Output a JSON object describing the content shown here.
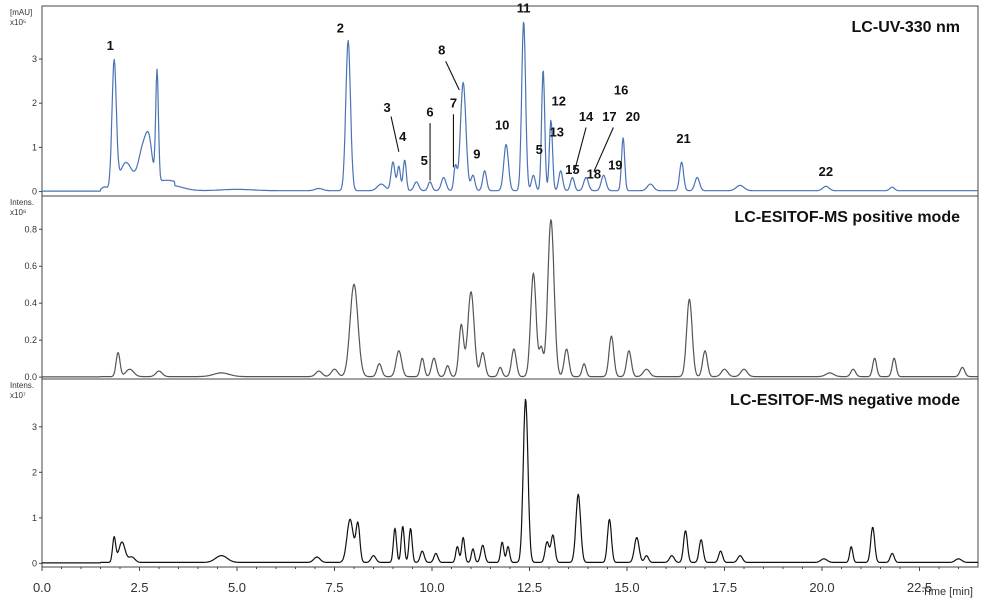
{
  "chart_data": {
    "type": "line",
    "xlabel": "Time [min]",
    "xlim": [
      0,
      24
    ],
    "xticks": [
      "0.0",
      "2.5",
      "5.0",
      "7.5",
      "10.0",
      "12.5",
      "15.0",
      "17.5",
      "20.0",
      "22.5"
    ],
    "xtick_values": [
      0,
      2.5,
      5,
      7.5,
      10,
      12.5,
      15,
      17.5,
      20,
      22.5
    ],
    "panels": [
      {
        "id": "uv",
        "title": "LC-UV-330 nm",
        "ylabel": "[mAU]",
        "yscale_label": "x10⁵",
        "ylim": [
          -0.1,
          4.2
        ],
        "yticks": [
          0,
          1,
          2,
          3
        ],
        "color": "#4a73b5",
        "baseline": 0.02,
        "peaks": [
          [
            1.6,
            0.06,
            0.06
          ],
          [
            1.85,
            2.85,
            0.055
          ],
          [
            2.15,
            0.55,
            0.15
          ],
          [
            2.6,
            0.85,
            0.12
          ],
          [
            2.75,
            0.7,
            0.08
          ],
          [
            2.95,
            2.5,
            0.035
          ],
          [
            3.3,
            0.12,
            0.3
          ],
          [
            5,
            0.03,
            0.4
          ],
          [
            7.1,
            0.05,
            0.1
          ],
          [
            7.85,
            3.4,
            0.06
          ],
          [
            8.7,
            0.15,
            0.1
          ],
          [
            9,
            0.65,
            0.05
          ],
          [
            9.15,
            0.55,
            0.04
          ],
          [
            9.3,
            0.7,
            0.04
          ],
          [
            9.6,
            0.2,
            0.06
          ],
          [
            9.95,
            0.2,
            0.05
          ],
          [
            10.3,
            0.3,
            0.06
          ],
          [
            10.6,
            0.55,
            0.04
          ],
          [
            10.8,
            2.45,
            0.07
          ],
          [
            11.05,
            0.35,
            0.05
          ],
          [
            11.35,
            0.45,
            0.05
          ],
          [
            11.9,
            1.05,
            0.06
          ],
          [
            12.35,
            3.85,
            0.05
          ],
          [
            12.6,
            0.35,
            0.05
          ],
          [
            12.85,
            2.75,
            0.04
          ],
          [
            13.05,
            1.6,
            0.04
          ],
          [
            13.3,
            0.45,
            0.05
          ],
          [
            13.6,
            0.3,
            0.05
          ],
          [
            13.95,
            0.3,
            0.06
          ],
          [
            14.4,
            0.35,
            0.06
          ],
          [
            14.9,
            1.2,
            0.04
          ],
          [
            15.6,
            0.15,
            0.08
          ],
          [
            16.4,
            0.65,
            0.05
          ],
          [
            16.8,
            0.3,
            0.06
          ],
          [
            17.9,
            0.12,
            0.1
          ],
          [
            20.1,
            0.1,
            0.08
          ],
          [
            21.8,
            0.08,
            0.06
          ]
        ],
        "annotations": [
          {
            "label": "1",
            "x": 1.75,
            "y": 3.2
          },
          {
            "label": "2",
            "x": 7.65,
            "y": 3.6
          },
          {
            "label": "3",
            "x": 8.85,
            "y": 1.8
          },
          {
            "label": "4",
            "x": 9.25,
            "y": 1.15
          },
          {
            "label": "5",
            "x": 9.8,
            "y": 0.6
          },
          {
            "label": "6",
            "x": 9.95,
            "y": 1.7
          },
          {
            "label": "7",
            "x": 10.55,
            "y": 1.9
          },
          {
            "label": "8",
            "x": 10.25,
            "y": 3.1
          },
          {
            "label": "9",
            "x": 11.15,
            "y": 0.75
          },
          {
            "label": "10",
            "x": 11.8,
            "y": 1.4
          },
          {
            "label": "5",
            "x": 12.75,
            "y": 0.85
          },
          {
            "label": "11",
            "x": 12.35,
            "y": 4.05
          },
          {
            "label": "12",
            "x": 13.25,
            "y": 1.95
          },
          {
            "label": "13",
            "x": 13.2,
            "y": 1.25
          },
          {
            "label": "14",
            "x": 13.95,
            "y": 1.6
          },
          {
            "label": "15",
            "x": 13.6,
            "y": 0.4
          },
          {
            "label": "16",
            "x": 14.85,
            "y": 2.2
          },
          {
            "label": "17",
            "x": 14.55,
            "y": 1.6
          },
          {
            "label": "18",
            "x": 14.15,
            "y": 0.3
          },
          {
            "label": "19",
            "x": 14.7,
            "y": 0.5
          },
          {
            "label": "20",
            "x": 15.15,
            "y": 1.6
          },
          {
            "label": "21",
            "x": 16.45,
            "y": 1.1
          },
          {
            "label": "22",
            "x": 20.1,
            "y": 0.35
          }
        ],
        "leaders": [
          {
            "from": [
              8.95,
              1.7
            ],
            "to": [
              9.15,
              0.9
            ]
          },
          {
            "from": [
              9.95,
              1.55
            ],
            "to": [
              9.95,
              0.25
            ]
          },
          {
            "from": [
              10.55,
              1.75
            ],
            "to": [
              10.55,
              0.55
            ]
          },
          {
            "from": [
              10.35,
              2.95
            ],
            "to": [
              10.7,
              2.3
            ]
          },
          {
            "from": [
              13.95,
              1.45
            ],
            "to": [
              13.65,
              0.45
            ]
          },
          {
            "from": [
              14.65,
              1.45
            ],
            "to": [
              14.15,
              0.45
            ]
          }
        ]
      },
      {
        "id": "pos",
        "title": "LC-ESITOF-MS positive mode",
        "ylabel": "Intens.",
        "yscale_label": "x10⁸",
        "ylim": [
          -0.01,
          0.98
        ],
        "yticks": [
          0,
          0.2,
          0.4,
          0.6,
          0.8
        ],
        "ytick_labels": [
          "0.0",
          "0.2",
          "0.4",
          "0.6",
          "0.8"
        ],
        "color": "#555555",
        "baseline": 0.003,
        "peaks": [
          [
            1.95,
            0.13,
            0.05
          ],
          [
            2.25,
            0.04,
            0.1
          ],
          [
            3,
            0.03,
            0.08
          ],
          [
            4.6,
            0.02,
            0.2
          ],
          [
            7.1,
            0.03,
            0.08
          ],
          [
            7.5,
            0.04,
            0.08
          ],
          [
            8,
            0.5,
            0.1
          ],
          [
            8.65,
            0.07,
            0.06
          ],
          [
            9.15,
            0.14,
            0.07
          ],
          [
            9.75,
            0.1,
            0.05
          ],
          [
            10.05,
            0.1,
            0.06
          ],
          [
            10.4,
            0.06,
            0.05
          ],
          [
            10.75,
            0.28,
            0.06
          ],
          [
            11,
            0.46,
            0.08
          ],
          [
            11.3,
            0.13,
            0.06
          ],
          [
            11.75,
            0.05,
            0.05
          ],
          [
            12.1,
            0.15,
            0.06
          ],
          [
            12.6,
            0.56,
            0.07
          ],
          [
            12.8,
            0.15,
            0.05
          ],
          [
            13.05,
            0.85,
            0.08
          ],
          [
            13.45,
            0.15,
            0.06
          ],
          [
            13.9,
            0.07,
            0.05
          ],
          [
            14.6,
            0.22,
            0.06
          ],
          [
            15.05,
            0.14,
            0.06
          ],
          [
            15.5,
            0.04,
            0.08
          ],
          [
            16.6,
            0.42,
            0.07
          ],
          [
            17,
            0.14,
            0.06
          ],
          [
            17.5,
            0.04,
            0.08
          ],
          [
            18,
            0.04,
            0.08
          ],
          [
            20.2,
            0.02,
            0.1
          ],
          [
            20.8,
            0.04,
            0.06
          ],
          [
            21.35,
            0.1,
            0.05
          ],
          [
            21.85,
            0.1,
            0.05
          ],
          [
            23.6,
            0.05,
            0.06
          ]
        ]
      },
      {
        "id": "neg",
        "title": "LC-ESITOF-MS negative mode",
        "ylabel": "Intens.",
        "yscale_label": "x10⁷",
        "ylim": [
          -0.08,
          4.05
        ],
        "yticks": [
          0,
          1,
          2,
          3
        ],
        "color": "#111111",
        "baseline": 0.02,
        "peaks": [
          [
            1.85,
            0.55,
            0.04
          ],
          [
            2.05,
            0.45,
            0.08
          ],
          [
            2.3,
            0.12,
            0.08
          ],
          [
            4.6,
            0.15,
            0.15
          ],
          [
            7.05,
            0.12,
            0.08
          ],
          [
            7.9,
            0.95,
            0.08
          ],
          [
            8.1,
            0.85,
            0.05
          ],
          [
            8.5,
            0.15,
            0.06
          ],
          [
            9.05,
            0.75,
            0.04
          ],
          [
            9.25,
            0.8,
            0.04
          ],
          [
            9.45,
            0.75,
            0.04
          ],
          [
            9.75,
            0.25,
            0.05
          ],
          [
            10.1,
            0.2,
            0.05
          ],
          [
            10.65,
            0.35,
            0.04
          ],
          [
            10.8,
            0.55,
            0.04
          ],
          [
            11.05,
            0.3,
            0.04
          ],
          [
            11.3,
            0.38,
            0.05
          ],
          [
            11.8,
            0.45,
            0.04
          ],
          [
            11.95,
            0.35,
            0.04
          ],
          [
            12.4,
            3.6,
            0.06
          ],
          [
            12.95,
            0.45,
            0.05
          ],
          [
            13.1,
            0.6,
            0.05
          ],
          [
            13.75,
            1.5,
            0.06
          ],
          [
            14.55,
            0.95,
            0.05
          ],
          [
            15.25,
            0.55,
            0.06
          ],
          [
            15.5,
            0.15,
            0.05
          ],
          [
            16.15,
            0.15,
            0.06
          ],
          [
            16.5,
            0.7,
            0.05
          ],
          [
            16.9,
            0.5,
            0.05
          ],
          [
            17.4,
            0.25,
            0.05
          ],
          [
            17.9,
            0.15,
            0.06
          ],
          [
            20.05,
            0.08,
            0.08
          ],
          [
            20.75,
            0.35,
            0.04
          ],
          [
            21.3,
            0.78,
            0.05
          ],
          [
            21.8,
            0.2,
            0.05
          ],
          [
            23.5,
            0.08,
            0.08
          ]
        ]
      }
    ]
  }
}
